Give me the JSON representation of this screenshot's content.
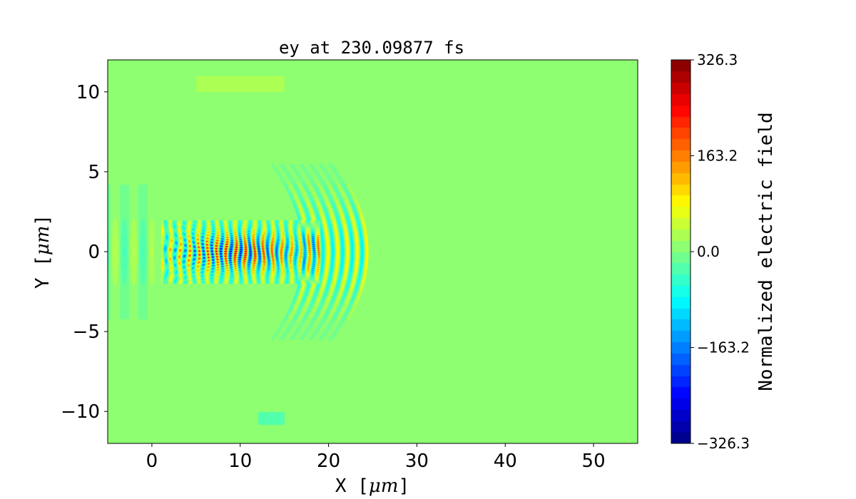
{
  "chart_data": {
    "type": "heatmap",
    "title": "ey at 230.09877 fs",
    "xlabel_prefix": "X [",
    "xlabel_unit": "μm",
    "xlabel_suffix": "]",
    "ylabel_prefix": "Y [",
    "ylabel_unit": "μm",
    "ylabel_suffix": "]",
    "xlim": [
      -5,
      55
    ],
    "ylim": [
      -12,
      12
    ],
    "xticks": [
      0,
      10,
      20,
      30,
      40,
      50
    ],
    "xtick_labels": [
      "0",
      "10",
      "20",
      "30",
      "40",
      "50"
    ],
    "yticks": [
      10,
      5,
      0,
      -5,
      -10
    ],
    "ytick_labels": [
      "10",
      "5",
      "0",
      "−5",
      "−10"
    ],
    "colormap": "jet",
    "color_levels": 34,
    "colorbar": {
      "label": "Normalized electric field",
      "range": [
        -326.3,
        326.3
      ],
      "ticks": [
        326.3,
        163.2,
        0.0,
        -163.2,
        -326.3
      ],
      "tick_labels": [
        "326.3",
        "163.2",
        "0.0",
        "−163.2",
        "−326.3"
      ]
    },
    "features": {
      "laser_pulse": {
        "x_range": [
          1,
          19
        ],
        "y_range": [
          -2,
          2
        ],
        "peak_abs": 326.3
      },
      "curved_wavefronts": {
        "x_range": [
          17,
          24
        ],
        "y_range": [
          -5.5,
          5.5
        ]
      },
      "trailing_field": {
        "x_range": [
          -5,
          0
        ],
        "y_range": [
          -4,
          4
        ]
      }
    },
    "grid": false
  }
}
